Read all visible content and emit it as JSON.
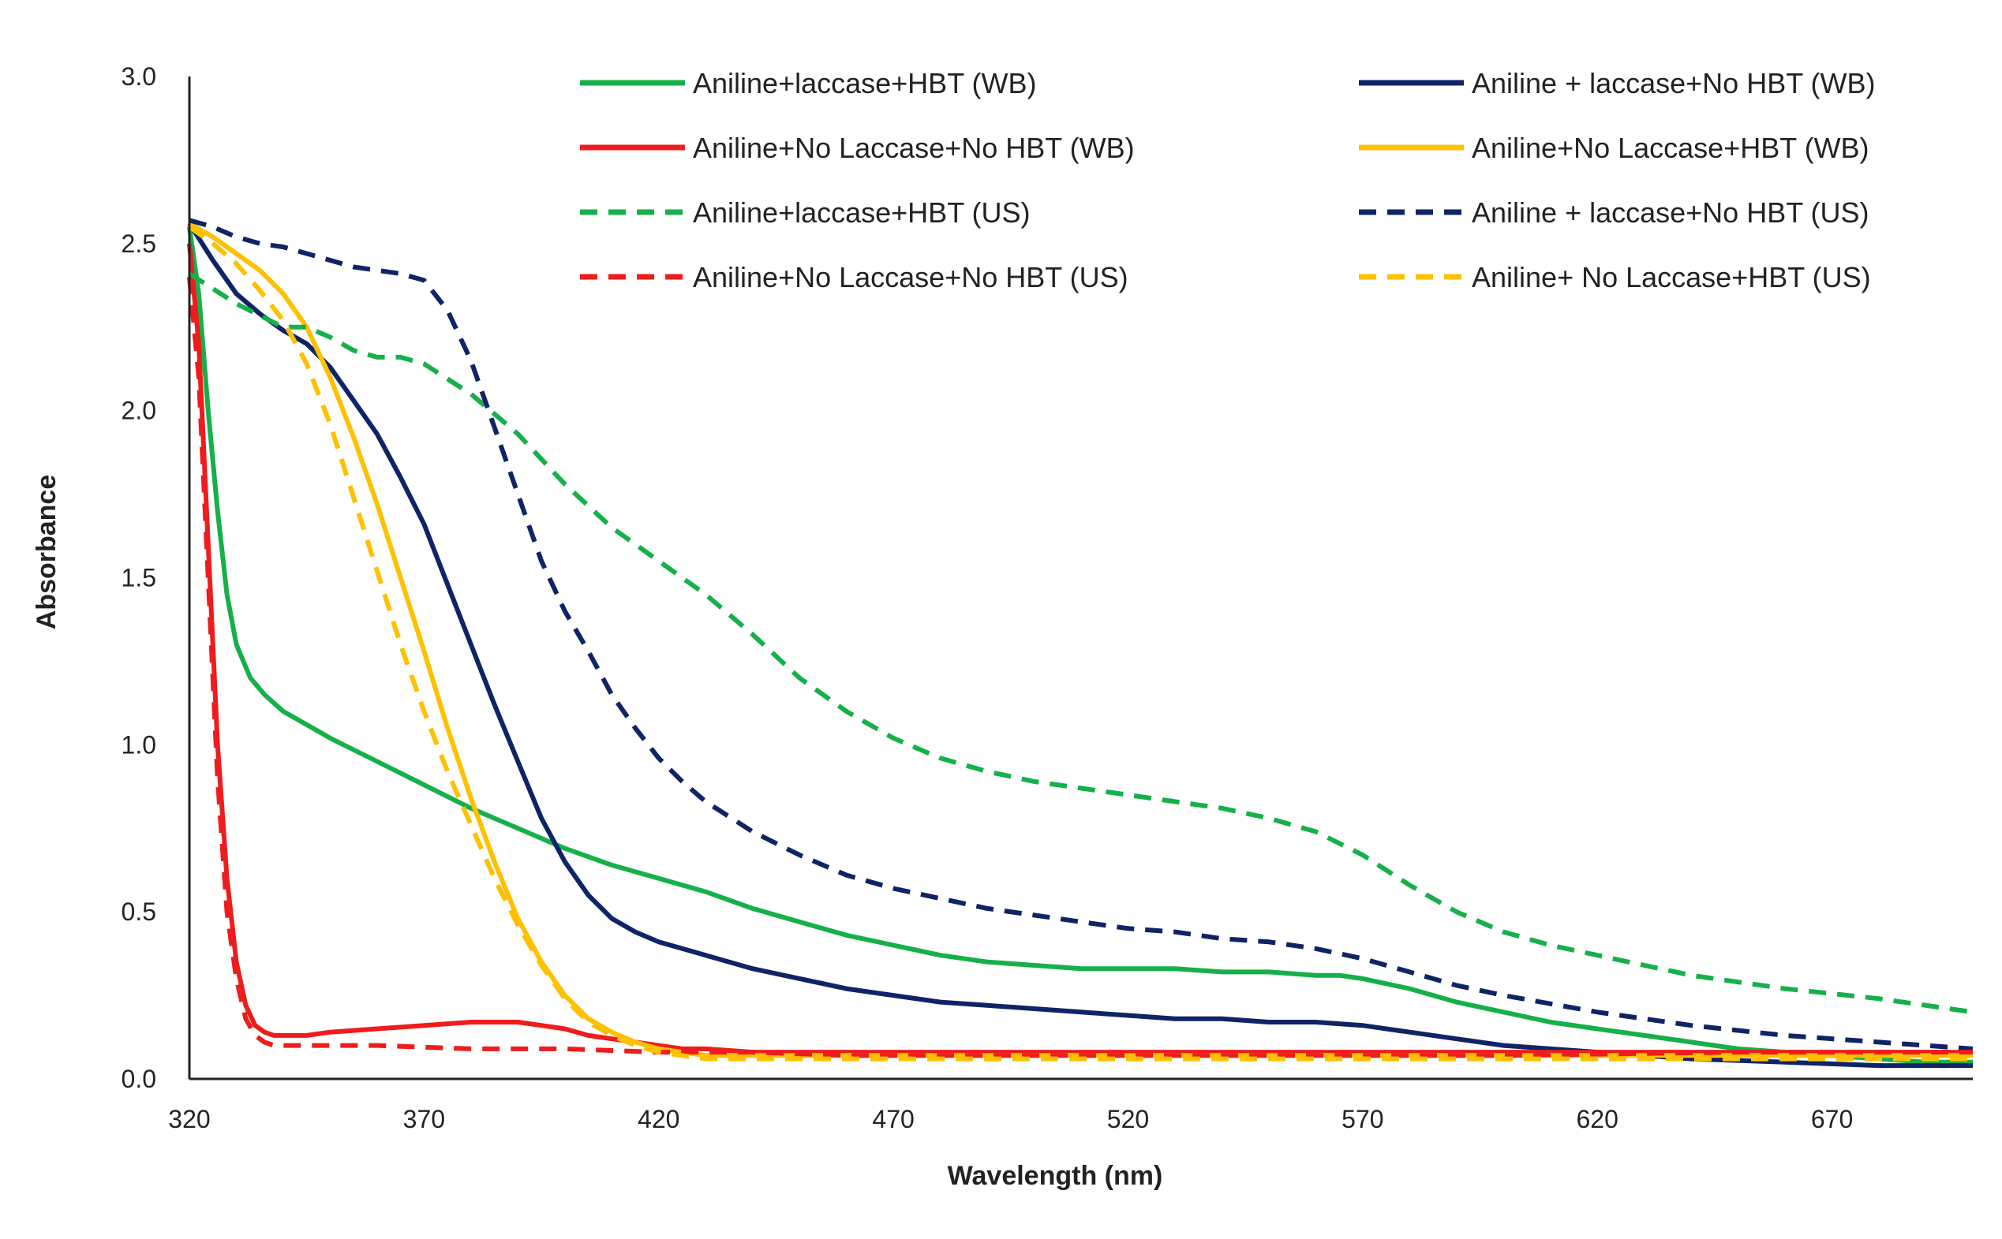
{
  "chart_data": {
    "type": "line",
    "title": "",
    "xlabel": "Wavelength (nm)",
    "ylabel": "Absorbance",
    "xlim": [
      320,
      700
    ],
    "ylim": [
      0,
      3.0
    ],
    "xticks": [
      320,
      370,
      420,
      470,
      520,
      570,
      620,
      670
    ],
    "yticks": [
      0.0,
      0.5,
      1.0,
      1.5,
      2.0,
      2.5,
      3.0
    ],
    "grid": false,
    "legend_position": "top, two columns",
    "series": [
      {
        "name": "Aniline+laccase+HBT (WB)",
        "color": "#16b04a",
        "style": "solid",
        "x": [
          320,
          322,
          324,
          326,
          328,
          330,
          333,
          336,
          340,
          345,
          350,
          360,
          370,
          380,
          390,
          400,
          410,
          420,
          430,
          440,
          450,
          460,
          470,
          480,
          490,
          500,
          510,
          520,
          530,
          540,
          550,
          560,
          565,
          570,
          580,
          590,
          600,
          610,
          620,
          630,
          640,
          650,
          660,
          670,
          680,
          690,
          700
        ],
        "y": [
          2.55,
          2.35,
          2.0,
          1.7,
          1.45,
          1.3,
          1.2,
          1.15,
          1.1,
          1.06,
          1.02,
          0.95,
          0.88,
          0.81,
          0.75,
          0.69,
          0.64,
          0.6,
          0.56,
          0.51,
          0.47,
          0.43,
          0.4,
          0.37,
          0.35,
          0.34,
          0.33,
          0.33,
          0.33,
          0.32,
          0.32,
          0.31,
          0.31,
          0.3,
          0.27,
          0.23,
          0.2,
          0.17,
          0.15,
          0.13,
          0.11,
          0.09,
          0.08,
          0.07,
          0.06,
          0.05,
          0.05
        ]
      },
      {
        "name": "Aniline + laccase+No HBT (WB)",
        "color": "#0f2466",
        "style": "solid",
        "x": [
          320,
          325,
          330,
          335,
          340,
          345,
          350,
          355,
          360,
          365,
          370,
          375,
          380,
          385,
          390,
          395,
          400,
          405,
          410,
          415,
          420,
          430,
          440,
          450,
          460,
          470,
          480,
          490,
          500,
          510,
          520,
          530,
          540,
          550,
          560,
          570,
          580,
          590,
          600,
          610,
          620,
          640,
          660,
          680,
          700
        ],
        "y": [
          2.56,
          2.45,
          2.35,
          2.29,
          2.24,
          2.2,
          2.13,
          2.03,
          1.93,
          1.8,
          1.66,
          1.48,
          1.3,
          1.12,
          0.95,
          0.78,
          0.65,
          0.55,
          0.48,
          0.44,
          0.41,
          0.37,
          0.33,
          0.3,
          0.27,
          0.25,
          0.23,
          0.22,
          0.21,
          0.2,
          0.19,
          0.18,
          0.18,
          0.17,
          0.17,
          0.16,
          0.14,
          0.12,
          0.1,
          0.09,
          0.08,
          0.06,
          0.05,
          0.04,
          0.04
        ]
      },
      {
        "name": "Aniline+No Laccase+No HBT (WB)",
        "color": "#ee1c1c",
        "style": "solid",
        "x": [
          320,
          322,
          324,
          326,
          328,
          330,
          332,
          334,
          336,
          338,
          340,
          345,
          350,
          360,
          370,
          380,
          390,
          395,
          400,
          405,
          410,
          415,
          420,
          425,
          430,
          440,
          460,
          500,
          550,
          600,
          650,
          700
        ],
        "y": [
          2.5,
          2.2,
          1.6,
          1.0,
          0.6,
          0.35,
          0.22,
          0.16,
          0.14,
          0.13,
          0.13,
          0.13,
          0.14,
          0.15,
          0.16,
          0.17,
          0.17,
          0.16,
          0.15,
          0.13,
          0.12,
          0.11,
          0.1,
          0.09,
          0.09,
          0.08,
          0.08,
          0.08,
          0.08,
          0.08,
          0.08,
          0.08
        ]
      },
      {
        "name": "Aniline+No Laccase+HBT (WB)",
        "color": "#ffc000",
        "style": "solid",
        "x": [
          320,
          325,
          330,
          335,
          340,
          345,
          350,
          355,
          360,
          365,
          370,
          375,
          380,
          385,
          390,
          395,
          400,
          405,
          410,
          415,
          420,
          425,
          430,
          440,
          460,
          500,
          550,
          600,
          650,
          700
        ],
        "y": [
          2.56,
          2.52,
          2.47,
          2.42,
          2.35,
          2.25,
          2.1,
          1.92,
          1.72,
          1.5,
          1.28,
          1.05,
          0.84,
          0.65,
          0.48,
          0.35,
          0.25,
          0.18,
          0.14,
          0.11,
          0.09,
          0.08,
          0.07,
          0.07,
          0.07,
          0.07,
          0.07,
          0.07,
          0.07,
          0.07
        ]
      },
      {
        "name": "Aniline+laccase+HBT (US)",
        "color": "#16b04a",
        "style": "dashed",
        "x": [
          320,
          330,
          340,
          345,
          350,
          355,
          360,
          365,
          370,
          380,
          390,
          400,
          410,
          420,
          430,
          440,
          450,
          460,
          470,
          480,
          490,
          500,
          510,
          520,
          530,
          540,
          550,
          560,
          570,
          580,
          590,
          600,
          610,
          620,
          640,
          660,
          680,
          700
        ],
        "y": [
          2.41,
          2.32,
          2.25,
          2.25,
          2.22,
          2.18,
          2.16,
          2.16,
          2.14,
          2.05,
          1.93,
          1.78,
          1.65,
          1.55,
          1.45,
          1.33,
          1.2,
          1.1,
          1.02,
          0.96,
          0.92,
          0.89,
          0.87,
          0.85,
          0.83,
          0.81,
          0.78,
          0.74,
          0.67,
          0.58,
          0.5,
          0.44,
          0.4,
          0.37,
          0.31,
          0.27,
          0.24,
          0.2
        ]
      },
      {
        "name": "Aniline + laccase+No HBT (US)",
        "color": "#0f2466",
        "style": "dashed",
        "x": [
          320,
          325,
          330,
          335,
          340,
          345,
          350,
          355,
          360,
          365,
          370,
          375,
          380,
          385,
          390,
          395,
          400,
          405,
          410,
          415,
          420,
          425,
          430,
          440,
          450,
          460,
          470,
          480,
          490,
          500,
          510,
          520,
          530,
          540,
          550,
          560,
          570,
          580,
          590,
          600,
          620,
          640,
          660,
          680,
          700
        ],
        "y": [
          2.57,
          2.55,
          2.52,
          2.5,
          2.49,
          2.47,
          2.45,
          2.43,
          2.42,
          2.41,
          2.39,
          2.3,
          2.15,
          1.95,
          1.75,
          1.55,
          1.4,
          1.28,
          1.15,
          1.05,
          0.96,
          0.89,
          0.83,
          0.74,
          0.67,
          0.61,
          0.57,
          0.54,
          0.51,
          0.49,
          0.47,
          0.45,
          0.44,
          0.42,
          0.41,
          0.39,
          0.36,
          0.32,
          0.28,
          0.25,
          0.2,
          0.16,
          0.13,
          0.11,
          0.09
        ]
      },
      {
        "name": "Aniline+No Laccase+No HBT (US)",
        "color": "#ee1c1c",
        "style": "dashed",
        "x": [
          320,
          322,
          324,
          326,
          328,
          330,
          332,
          334,
          336,
          338,
          340,
          345,
          350,
          360,
          380,
          400,
          420,
          440,
          460,
          500,
          550,
          600,
          650,
          700
        ],
        "y": [
          2.4,
          2.1,
          1.5,
          0.9,
          0.5,
          0.3,
          0.18,
          0.13,
          0.11,
          0.1,
          0.1,
          0.1,
          0.1,
          0.1,
          0.09,
          0.09,
          0.08,
          0.08,
          0.07,
          0.07,
          0.07,
          0.07,
          0.08,
          0.08
        ]
      },
      {
        "name": "Aniline+ No Laccase+HBT (US)",
        "color": "#ffc000",
        "style": "dashed",
        "x": [
          320,
          325,
          330,
          335,
          340,
          345,
          350,
          355,
          360,
          365,
          370,
          375,
          380,
          385,
          390,
          395,
          400,
          405,
          410,
          415,
          420,
          425,
          430,
          440,
          460,
          500,
          550,
          600,
          650,
          700
        ],
        "y": [
          2.55,
          2.5,
          2.44,
          2.36,
          2.27,
          2.14,
          1.96,
          1.74,
          1.52,
          1.3,
          1.1,
          0.92,
          0.76,
          0.6,
          0.46,
          0.34,
          0.24,
          0.17,
          0.13,
          0.1,
          0.08,
          0.07,
          0.06,
          0.06,
          0.06,
          0.06,
          0.06,
          0.06,
          0.06,
          0.06
        ]
      }
    ]
  }
}
